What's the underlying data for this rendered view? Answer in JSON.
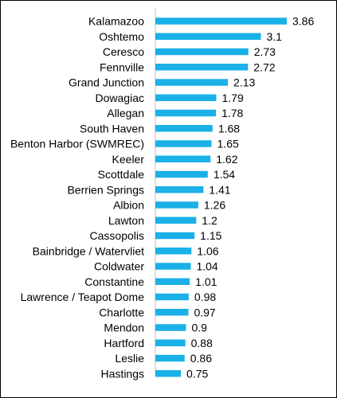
{
  "chart_data": {
    "type": "bar",
    "orientation": "horizontal",
    "title": "",
    "xlabel": "",
    "ylabel": "",
    "grid": false,
    "legend": "none",
    "bar_color": "#1AB0E8",
    "categories": [
      "Kalamazoo",
      "Oshtemo",
      "Ceresco",
      "Fennville",
      "Grand Junction",
      "Dowagiac",
      "Allegan",
      "South Haven",
      "Benton Harbor (SWMREC)",
      "Keeler",
      "Scottdale",
      "Berrien Springs",
      "Albion",
      "Lawton",
      "Cassopolis",
      "Bainbridge / Watervliet",
      "Coldwater",
      "Constantine",
      "Lawrence / Teapot Dome",
      "Charlotte",
      "Mendon",
      "Hartford",
      "Leslie",
      "Hastings"
    ],
    "values": [
      3.86,
      3.1,
      2.73,
      2.72,
      2.13,
      1.79,
      1.78,
      1.68,
      1.65,
      1.62,
      1.54,
      1.41,
      1.26,
      1.2,
      1.15,
      1.06,
      1.04,
      1.01,
      0.98,
      0.97,
      0.9,
      0.88,
      0.86,
      0.75
    ],
    "value_labels": [
      "3.86",
      "3.1",
      "2.73",
      "2.72",
      "2.13",
      "1.79",
      "1.78",
      "1.68",
      "1.65",
      "1.62",
      "1.54",
      "1.41",
      "1.26",
      "1.2",
      "1.15",
      "1.06",
      "1.04",
      "1.01",
      "0.98",
      "0.97",
      "0.9",
      "0.88",
      "0.86",
      "0.75"
    ],
    "xlim": [
      0,
      3.86
    ]
  }
}
